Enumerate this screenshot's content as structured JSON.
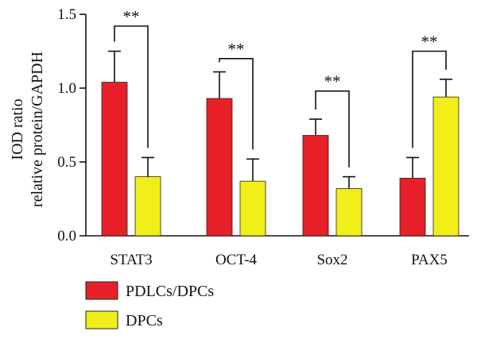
{
  "chart_data": {
    "type": "bar",
    "title": "",
    "ylabel_line1": "IOD ratio",
    "ylabel_line2": "relative protein/GAPDH",
    "xlabel": "",
    "ylim": [
      0,
      1.5
    ],
    "yticks": [
      0.0,
      0.5,
      1.0,
      1.5
    ],
    "ytick_labels": [
      "0.0",
      "0.5",
      "1.0",
      "1.5"
    ],
    "categories": [
      "STAT3",
      "OCT-4",
      "Sox2",
      "PAX5"
    ],
    "series": [
      {
        "name": "PDLCs/DPCs",
        "color": "#e8202a",
        "values": [
          1.04,
          0.93,
          0.68,
          0.39
        ],
        "errors": [
          0.21,
          0.18,
          0.11,
          0.14
        ]
      },
      {
        "name": "DPCs",
        "color": "#f2ee1a",
        "values": [
          0.4,
          0.37,
          0.32,
          0.94
        ],
        "errors": [
          0.13,
          0.15,
          0.08,
          0.12
        ]
      }
    ],
    "significance": [
      {
        "category": "STAT3",
        "label": "**",
        "bracket_y": 1.42
      },
      {
        "category": "OCT-4",
        "label": "**",
        "bracket_y": 1.2
      },
      {
        "category": "Sox2",
        "label": "**",
        "bracket_y": 0.98
      },
      {
        "category": "PAX5",
        "label": "**",
        "bracket_y": 1.25
      }
    ],
    "grid": false,
    "legend_position": "bottom-left"
  }
}
